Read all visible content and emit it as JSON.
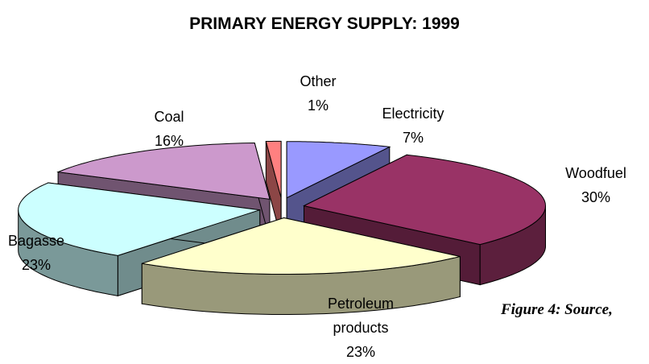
{
  "chart_data": {
    "type": "pie",
    "title": "PRIMARY ENERGY SUPPLY: 1999",
    "categories": [
      "Electricity",
      "Woodfuel",
      "Petroleum products",
      "Bagasse",
      "Coal",
      "Other"
    ],
    "values": [
      7,
      30,
      23,
      23,
      16,
      1
    ],
    "value_labels": [
      "7%",
      "30%",
      "23%",
      "23%",
      "16%",
      "1%"
    ],
    "colors": [
      "#9999ff",
      "#993366",
      "#ffffcc",
      "#ccffff",
      "#cc99cc",
      "#ff8080"
    ],
    "annotation": "Figure 4: Source,"
  }
}
